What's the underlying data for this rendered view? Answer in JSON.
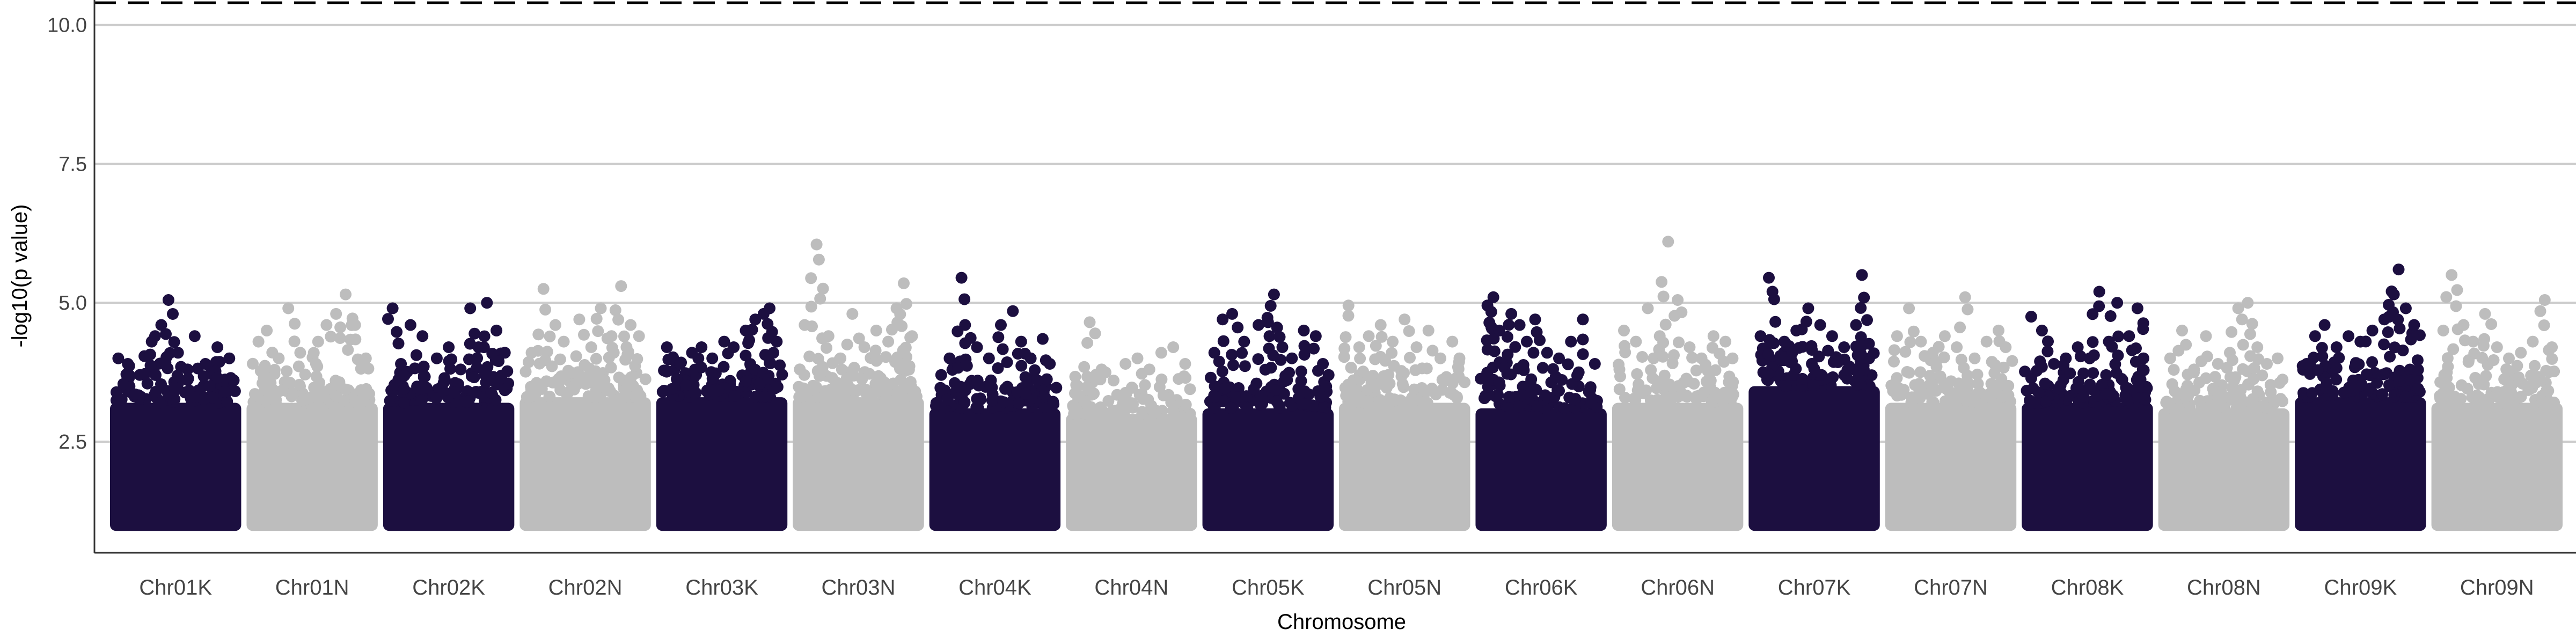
{
  "chart_data": {
    "type": "scatter",
    "subtype": "manhattan",
    "title": "",
    "xlabel": "Chromosome",
    "ylabel": "-log10(p value)",
    "ylim": [
      0.5,
      10.45
    ],
    "yticks": [
      2.5,
      5.0,
      7.5,
      10.0
    ],
    "ytick_labels": [
      "2.5",
      "5.0",
      "7.5",
      "10.0"
    ],
    "grid": "horizontal-major",
    "legend": "none",
    "threshold": {
      "value": 10.4,
      "style": "dashed",
      "color": "#000000"
    },
    "point_min": 1.0,
    "colors": {
      "odd": "#1c0f40",
      "even": "#bdbdbd"
    },
    "categories": [
      "Chr01K",
      "Chr01N",
      "Chr02K",
      "Chr02N",
      "Chr03K",
      "Chr03N",
      "Chr04K",
      "Chr04N",
      "Chr05K",
      "Chr05N",
      "Chr06K",
      "Chr06N",
      "Chr07K",
      "Chr07N",
      "Chr08K",
      "Chr08N",
      "Chr09K",
      "Chr09N"
    ],
    "chromosomes": [
      {
        "name": "Chr01K",
        "solid_top": 3.2,
        "peaks": [
          [
            0.02,
            4.0
          ],
          [
            0.1,
            3.9
          ],
          [
            0.2,
            3.7
          ],
          [
            0.3,
            4.3
          ],
          [
            0.38,
            4.6
          ],
          [
            0.44,
            5.05
          ],
          [
            0.52,
            4.1
          ],
          [
            0.6,
            3.8
          ],
          [
            0.66,
            4.4
          ],
          [
            0.75,
            3.9
          ],
          [
            0.85,
            4.2
          ],
          [
            0.95,
            4.0
          ]
        ]
      },
      {
        "name": "Chr01N",
        "solid_top": 3.2,
        "peaks": [
          [
            0.05,
            4.3
          ],
          [
            0.12,
            4.5
          ],
          [
            0.22,
            4.0
          ],
          [
            0.3,
            4.9
          ],
          [
            0.4,
            4.1
          ],
          [
            0.55,
            4.3
          ],
          [
            0.62,
            4.6
          ],
          [
            0.7,
            4.8
          ],
          [
            0.78,
            5.15
          ],
          [
            0.86,
            4.6
          ],
          [
            0.95,
            4.0
          ]
        ]
      },
      {
        "name": "Chr02K",
        "solid_top": 3.2,
        "peaks": [
          [
            0.03,
            4.9
          ],
          [
            0.1,
            3.9
          ],
          [
            0.18,
            4.6
          ],
          [
            0.28,
            4.4
          ],
          [
            0.4,
            4.0
          ],
          [
            0.5,
            4.2
          ],
          [
            0.6,
            3.8
          ],
          [
            0.68,
            4.9
          ],
          [
            0.75,
            4.2
          ],
          [
            0.82,
            5.0
          ],
          [
            0.9,
            4.5
          ],
          [
            0.97,
            4.1
          ]
        ]
      },
      {
        "name": "Chr02N",
        "solid_top": 3.3,
        "peaks": [
          [
            0.05,
            4.1
          ],
          [
            0.15,
            5.25
          ],
          [
            0.25,
            4.6
          ],
          [
            0.32,
            4.3
          ],
          [
            0.45,
            4.7
          ],
          [
            0.55,
            4.2
          ],
          [
            0.63,
            4.9
          ],
          [
            0.72,
            4.4
          ],
          [
            0.8,
            5.3
          ],
          [
            0.88,
            4.6
          ],
          [
            0.95,
            4.4
          ]
        ]
      },
      {
        "name": "Chr03K",
        "solid_top": 3.3,
        "peaks": [
          [
            0.04,
            4.2
          ],
          [
            0.15,
            3.9
          ],
          [
            0.25,
            4.1
          ],
          [
            0.33,
            4.2
          ],
          [
            0.42,
            4.0
          ],
          [
            0.52,
            4.3
          ],
          [
            0.6,
            4.2
          ],
          [
            0.7,
            4.5
          ],
          [
            0.78,
            4.7
          ],
          [
            0.85,
            4.8
          ],
          [
            0.9,
            4.9
          ],
          [
            0.96,
            4.3
          ]
        ]
      },
      {
        "name": "Chr03N",
        "solid_top": 3.3,
        "peaks": [
          [
            0.05,
            4.6
          ],
          [
            0.15,
            6.05
          ],
          [
            0.25,
            4.4
          ],
          [
            0.35,
            4.0
          ],
          [
            0.45,
            4.8
          ],
          [
            0.55,
            4.2
          ],
          [
            0.65,
            4.5
          ],
          [
            0.75,
            4.3
          ],
          [
            0.82,
            4.9
          ],
          [
            0.88,
            5.35
          ],
          [
            0.95,
            4.4
          ]
        ]
      },
      {
        "name": "Chr04K",
        "solid_top": 3.1,
        "peaks": [
          [
            0.05,
            3.7
          ],
          [
            0.12,
            4.0
          ],
          [
            0.22,
            5.45
          ],
          [
            0.25,
            4.6
          ],
          [
            0.35,
            4.2
          ],
          [
            0.45,
            4.0
          ],
          [
            0.55,
            4.6
          ],
          [
            0.65,
            4.85
          ],
          [
            0.72,
            4.3
          ],
          [
            0.8,
            4.0
          ],
          [
            0.9,
            4.35
          ],
          [
            0.96,
            3.9
          ]
        ]
      },
      {
        "name": "Chr04N",
        "solid_top": 3.0,
        "peaks": [
          [
            0.05,
            3.5
          ],
          [
            0.15,
            4.65
          ],
          [
            0.25,
            3.8
          ],
          [
            0.35,
            3.6
          ],
          [
            0.45,
            3.9
          ],
          [
            0.55,
            4.0
          ],
          [
            0.65,
            3.8
          ],
          [
            0.75,
            4.1
          ],
          [
            0.85,
            4.2
          ],
          [
            0.95,
            3.9
          ]
        ]
      },
      {
        "name": "Chr05K",
        "solid_top": 3.1,
        "peaks": [
          [
            0.05,
            4.1
          ],
          [
            0.12,
            4.7
          ],
          [
            0.2,
            4.8
          ],
          [
            0.3,
            4.3
          ],
          [
            0.42,
            4.6
          ],
          [
            0.5,
            4.65
          ],
          [
            0.55,
            5.15
          ],
          [
            0.62,
            4.2
          ],
          [
            0.7,
            4.0
          ],
          [
            0.8,
            4.5
          ],
          [
            0.9,
            4.4
          ],
          [
            0.96,
            3.9
          ]
        ]
      },
      {
        "name": "Chr05N",
        "solid_top": 3.2,
        "peaks": [
          [
            0.03,
            4.95
          ],
          [
            0.12,
            4.2
          ],
          [
            0.2,
            4.4
          ],
          [
            0.3,
            4.6
          ],
          [
            0.4,
            4.3
          ],
          [
            0.5,
            4.7
          ],
          [
            0.6,
            4.2
          ],
          [
            0.7,
            4.5
          ],
          [
            0.8,
            4.0
          ],
          [
            0.9,
            4.3
          ],
          [
            0.96,
            4.0
          ]
        ]
      },
      {
        "name": "Chr06K",
        "solid_top": 3.1,
        "peaks": [
          [
            0.05,
            4.95
          ],
          [
            0.1,
            5.1
          ],
          [
            0.15,
            4.5
          ],
          [
            0.25,
            4.8
          ],
          [
            0.32,
            4.6
          ],
          [
            0.38,
            4.3
          ],
          [
            0.45,
            4.7
          ],
          [
            0.55,
            4.1
          ],
          [
            0.65,
            4.0
          ],
          [
            0.75,
            4.3
          ],
          [
            0.85,
            4.7
          ],
          [
            0.95,
            3.9
          ]
        ]
      },
      {
        "name": "Chr06N",
        "solid_top": 3.2,
        "peaks": [
          [
            0.05,
            4.5
          ],
          [
            0.15,
            4.3
          ],
          [
            0.25,
            4.9
          ],
          [
            0.35,
            4.4
          ],
          [
            0.42,
            6.1
          ],
          [
            0.5,
            5.05
          ],
          [
            0.6,
            4.2
          ],
          [
            0.7,
            4.0
          ],
          [
            0.8,
            4.4
          ],
          [
            0.9,
            4.3
          ],
          [
            0.96,
            4.0
          ]
        ]
      },
      {
        "name": "Chr07K",
        "solid_top": 3.5,
        "peaks": [
          [
            0.05,
            4.4
          ],
          [
            0.12,
            5.45
          ],
          [
            0.15,
            5.2
          ],
          [
            0.25,
            4.3
          ],
          [
            0.35,
            4.5
          ],
          [
            0.45,
            4.9
          ],
          [
            0.55,
            4.6
          ],
          [
            0.65,
            4.4
          ],
          [
            0.75,
            4.2
          ],
          [
            0.85,
            4.6
          ],
          [
            0.9,
            5.5
          ],
          [
            0.96,
            4.0
          ]
        ]
      },
      {
        "name": "Chr07N",
        "solid_top": 3.2,
        "peaks": [
          [
            0.05,
            4.4
          ],
          [
            0.15,
            4.9
          ],
          [
            0.25,
            4.3
          ],
          [
            0.35,
            4.1
          ],
          [
            0.45,
            4.4
          ],
          [
            0.55,
            4.2
          ],
          [
            0.62,
            5.1
          ],
          [
            0.7,
            4.0
          ],
          [
            0.8,
            4.3
          ],
          [
            0.9,
            4.5
          ],
          [
            0.96,
            4.2
          ]
        ]
      },
      {
        "name": "Chr08K",
        "solid_top": 3.2,
        "peaks": [
          [
            0.03,
            4.75
          ],
          [
            0.12,
            4.5
          ],
          [
            0.22,
            3.9
          ],
          [
            0.32,
            4.0
          ],
          [
            0.42,
            4.2
          ],
          [
            0.52,
            4.0
          ],
          [
            0.6,
            5.2
          ],
          [
            0.68,
            4.3
          ],
          [
            0.75,
            5.0
          ],
          [
            0.85,
            4.4
          ],
          [
            0.92,
            4.9
          ],
          [
            0.97,
            4.0
          ]
        ]
      },
      {
        "name": "Chr08N",
        "solid_top": 3.1,
        "peaks": [
          [
            0.05,
            4.0
          ],
          [
            0.15,
            4.5
          ],
          [
            0.25,
            3.8
          ],
          [
            0.35,
            4.4
          ],
          [
            0.45,
            3.9
          ],
          [
            0.55,
            4.1
          ],
          [
            0.62,
            4.9
          ],
          [
            0.7,
            5.0
          ],
          [
            0.78,
            4.2
          ],
          [
            0.86,
            3.9
          ],
          [
            0.95,
            4.0
          ]
        ]
      },
      {
        "name": "Chr09K",
        "solid_top": 3.3,
        "peaks": [
          [
            0.05,
            3.9
          ],
          [
            0.12,
            4.4
          ],
          [
            0.2,
            4.6
          ],
          [
            0.3,
            4.2
          ],
          [
            0.4,
            4.4
          ],
          [
            0.5,
            4.3
          ],
          [
            0.6,
            4.5
          ],
          [
            0.7,
            4.7
          ],
          [
            0.78,
            5.15
          ],
          [
            0.82,
            5.6
          ],
          [
            0.88,
            4.9
          ],
          [
            0.95,
            4.6
          ]
        ]
      },
      {
        "name": "Chr09N",
        "solid_top": 3.2,
        "peaks": [
          [
            0.05,
            4.5
          ],
          [
            0.12,
            5.5
          ],
          [
            0.22,
            4.6
          ],
          [
            0.3,
            4.3
          ],
          [
            0.4,
            4.8
          ],
          [
            0.5,
            4.2
          ],
          [
            0.6,
            4.0
          ],
          [
            0.7,
            4.1
          ],
          [
            0.8,
            4.3
          ],
          [
            0.9,
            5.05
          ],
          [
            0.96,
            4.2
          ]
        ]
      }
    ]
  }
}
